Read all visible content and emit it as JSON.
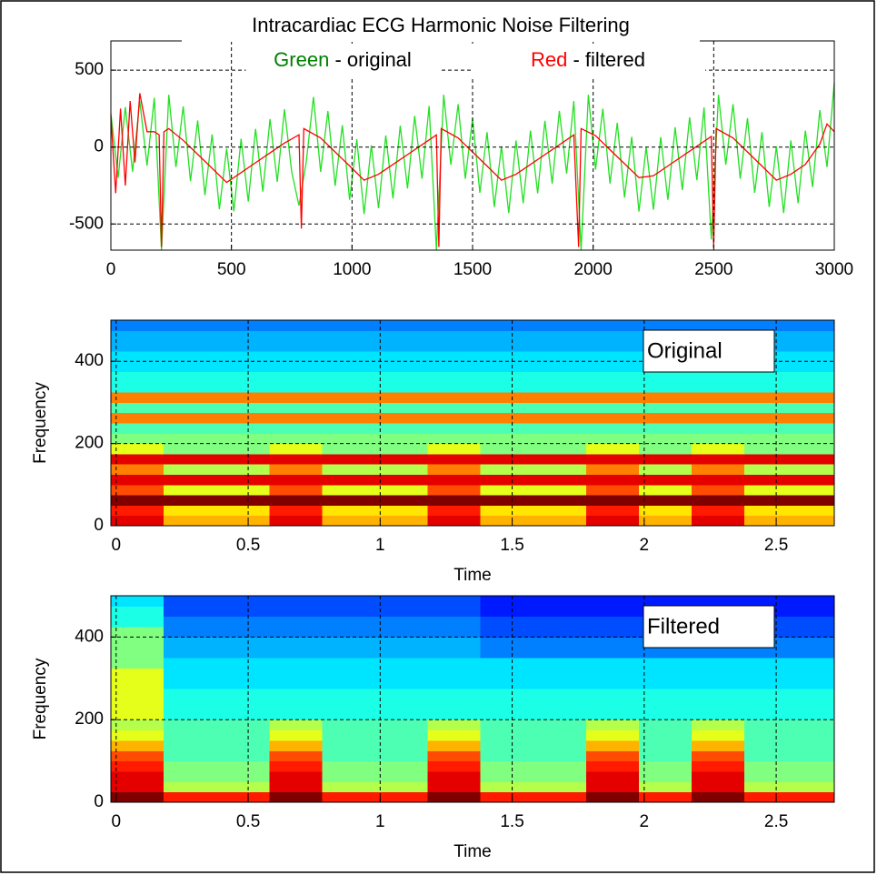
{
  "chart_data": [
    {
      "type": "line",
      "title": "Intracardiac ECG Harmonic Noise Filtering",
      "xlim": [
        0,
        3000
      ],
      "xticks": [
        0,
        500,
        1000,
        1500,
        2000,
        2500,
        3000
      ],
      "ylim": [
        -670,
        690
      ],
      "yticks": [
        -500,
        0,
        500
      ],
      "grid": true,
      "series": [
        {
          "name": "Green - original",
          "color": "#22e022",
          "x": [
            0,
            30,
            60,
            90,
            120,
            150,
            180,
            210,
            240,
            270,
            300,
            330,
            360,
            390,
            420,
            450,
            480,
            510,
            540,
            570,
            600,
            630,
            660,
            690,
            720,
            750,
            780,
            810,
            840,
            870,
            900,
            930,
            960,
            990,
            1020,
            1050,
            1080,
            1110,
            1140,
            1170,
            1200,
            1230,
            1260,
            1290,
            1320,
            1350,
            1380,
            1410,
            1440,
            1470,
            1500,
            1530,
            1560,
            1590,
            1620,
            1650,
            1680,
            1710,
            1740,
            1770,
            1800,
            1830,
            1860,
            1890,
            1920,
            1950,
            1980,
            2010,
            2040,
            2070,
            2100,
            2130,
            2160,
            2190,
            2220,
            2250,
            2280,
            2310,
            2340,
            2370,
            2400,
            2430,
            2460,
            2490,
            2520,
            2550,
            2580,
            2610,
            2640,
            2670,
            2700,
            2730,
            2760,
            2790,
            2820,
            2850,
            2880,
            2910,
            2940,
            2970,
            3000
          ],
          "values": [
            220,
            -200,
            260,
            -160,
            300,
            -120,
            320,
            -670,
            340,
            -130,
            264,
            -222,
            173,
            -313,
            82,
            -404,
            -10,
            -418,
            54,
            -354,
            118,
            -290,
            182,
            -226,
            246,
            -162,
            -380,
            -100,
            325,
            -161,
            234,
            -252,
            142,
            -343,
            51,
            -435,
            11,
            -397,
            75,
            -333,
            139,
            -269,
            203,
            -205,
            267,
            -670,
            340,
            -115,
            279,
            -206,
            188,
            -298,
            97,
            -389,
            5,
            -429,
            43,
            -365,
            107,
            -301,
            171,
            -237,
            235,
            -173,
            299,
            -670,
            340,
            -146,
            249,
            -237,
            157,
            -328,
            66,
            -419,
            1,
            -407,
            65,
            -343,
            129,
            -279,
            193,
            -215,
            257,
            -600,
            340,
            -115,
            279,
            -206,
            188,
            -298,
            97,
            -389,
            5,
            -429,
            43,
            -365,
            107,
            -260,
            240,
            -130,
            420
          ]
        },
        {
          "name": "Red - filtered",
          "color": "#ff0000",
          "x": [
            0,
            20,
            40,
            60,
            80,
            100,
            120,
            150,
            180,
            200,
            210,
            220,
            240,
            300,
            360,
            420,
            480,
            540,
            600,
            660,
            720,
            780,
            790,
            800,
            870,
            930,
            990,
            1050,
            1110,
            1170,
            1230,
            1290,
            1350,
            1360,
            1370,
            1440,
            1500,
            1560,
            1620,
            1680,
            1740,
            1800,
            1860,
            1920,
            1940,
            1950,
            2010,
            2070,
            2130,
            2190,
            2250,
            2310,
            2370,
            2430,
            2490,
            2500,
            2510,
            2580,
            2640,
            2700,
            2760,
            2820,
            2880,
            2940,
            2970,
            3000
          ],
          "values": [
            200,
            -300,
            250,
            -250,
            300,
            -100,
            350,
            100,
            100,
            80,
            -650,
            100,
            120,
            44,
            -47,
            -138,
            -230,
            -166,
            -102,
            -38,
            26,
            80,
            -530,
            120,
            59,
            -32,
            -123,
            -215,
            -177,
            -113,
            -49,
            15,
            79,
            -650,
            120,
            59,
            -32,
            -123,
            -215,
            -177,
            -113,
            -49,
            15,
            79,
            -650,
            120,
            74,
            -17,
            -108,
            -199,
            -187,
            -123,
            -59,
            5,
            69,
            -650,
            120,
            59,
            -32,
            -123,
            -215,
            -177,
            -113,
            20,
            150,
            100
          ]
        }
      ]
    },
    {
      "type": "heatmap",
      "annotation": "Original",
      "xlabel": "Time",
      "ylabel": "Frequency",
      "colormap": "jet",
      "clim": [
        0,
        10
      ],
      "xlim": [
        -0.02,
        2.72
      ],
      "xticks": [
        0,
        0.5,
        1,
        1.5,
        2,
        2.5
      ],
      "ylim": [
        0,
        500
      ],
      "yticks": [
        0,
        200,
        400
      ],
      "grid": true,
      "xbins": [
        -0.02,
        0.18,
        0.38,
        0.58,
        0.78,
        0.98,
        1.18,
        1.38,
        1.58,
        1.78,
        1.98,
        2.18,
        2.38,
        2.58,
        2.72
      ],
      "ybins": [
        0,
        25,
        50,
        75,
        100,
        125,
        150,
        175,
        200,
        225,
        250,
        275,
        300,
        325,
        350,
        375,
        400,
        425,
        450,
        475,
        500
      ],
      "values": [
        [
          9,
          7,
          7,
          9,
          7,
          7,
          9,
          7,
          7,
          9,
          7,
          9,
          7,
          7
        ],
        [
          8.5,
          6.5,
          6.5,
          8.5,
          6.5,
          6.5,
          8.5,
          6.5,
          6.5,
          8.5,
          6.5,
          8.5,
          6.5,
          6.5
        ],
        [
          10,
          10,
          10,
          10,
          10,
          10,
          10,
          10,
          10,
          10,
          10,
          10,
          10,
          10
        ],
        [
          8,
          6,
          6,
          8,
          6,
          6,
          8,
          6,
          6,
          8,
          6,
          8,
          6,
          6
        ],
        [
          9,
          9,
          9,
          9,
          9,
          9,
          9,
          9,
          9,
          9,
          9,
          9,
          9,
          9
        ],
        [
          7.5,
          5.5,
          5.5,
          7.5,
          5.5,
          5.5,
          7.5,
          5.5,
          5.5,
          7.5,
          5.5,
          7.5,
          5.5,
          5.5
        ],
        [
          9,
          9,
          9,
          9,
          9,
          9,
          9,
          9,
          9,
          9,
          9,
          9,
          9,
          9
        ],
        [
          6,
          5,
          5,
          6,
          5,
          5,
          6,
          5,
          5,
          6,
          5,
          6,
          5,
          5
        ],
        [
          5,
          5,
          5,
          5,
          5,
          5,
          5,
          5,
          5,
          5,
          5,
          5,
          5,
          5
        ],
        [
          4.5,
          4.5,
          4.5,
          4.5,
          4.5,
          4.5,
          4.5,
          4.5,
          4.5,
          4.5,
          4.5,
          4.5,
          4.5,
          4.5
        ],
        [
          7.5,
          7.5,
          7.5,
          7.5,
          7.5,
          7.5,
          7.5,
          7.5,
          7.5,
          7.5,
          7.5,
          7.5,
          7.5,
          7.5
        ],
        [
          4.5,
          4.5,
          4.5,
          4.5,
          4.5,
          4.5,
          4.5,
          4.5,
          4.5,
          4.5,
          4.5,
          4.5,
          4.5,
          4.5
        ],
        [
          7.5,
          7.5,
          7.5,
          7.5,
          7.5,
          7.5,
          7.5,
          7.5,
          7.5,
          7.5,
          7.5,
          7.5,
          7.5,
          7.5
        ],
        [
          4,
          4,
          4,
          4,
          4,
          4,
          4,
          4,
          4,
          4,
          4,
          4,
          4,
          4
        ],
        [
          4,
          4,
          4,
          4,
          4,
          4,
          4,
          4,
          4,
          4,
          4,
          4,
          4,
          4
        ],
        [
          3.5,
          3.5,
          3.5,
          3.5,
          3.5,
          3.5,
          3.5,
          3.5,
          3.5,
          3.5,
          3.5,
          3.5,
          3.5,
          3.5
        ],
        [
          3.5,
          3.5,
          3.5,
          3.5,
          3.5,
          3.5,
          3.5,
          3.5,
          3.5,
          3.5,
          3.5,
          3.5,
          3.5,
          3.5
        ],
        [
          3,
          3,
          3,
          3,
          3,
          3,
          3,
          3,
          3,
          3,
          3,
          3,
          3,
          3
        ],
        [
          3,
          3,
          3,
          3,
          3,
          3,
          3,
          3,
          3,
          3,
          3,
          3,
          3,
          3
        ],
        [
          2.5,
          2.5,
          2.5,
          2.5,
          2.5,
          2.5,
          2.5,
          2.5,
          2.5,
          2.5,
          2.5,
          2.5,
          2.5,
          2.5
        ]
      ]
    },
    {
      "type": "heatmap",
      "annotation": "Filtered",
      "xlabel": "Time",
      "ylabel": "Frequency",
      "colormap": "jet",
      "clim": [
        0,
        10
      ],
      "xlim": [
        -0.02,
        2.72
      ],
      "xticks": [
        0,
        0.5,
        1,
        1.5,
        2,
        2.5
      ],
      "ylim": [
        0,
        500
      ],
      "yticks": [
        0,
        200,
        400
      ],
      "grid": true,
      "xbins": [
        -0.02,
        0.18,
        0.38,
        0.58,
        0.78,
        0.98,
        1.18,
        1.38,
        1.58,
        1.78,
        1.98,
        2.18,
        2.38,
        2.58,
        2.72
      ],
      "ybins": [
        0,
        25,
        50,
        75,
        100,
        125,
        150,
        175,
        200,
        225,
        250,
        275,
        300,
        325,
        350,
        375,
        400,
        425,
        450,
        475,
        500
      ],
      "values": [
        [
          10,
          8.5,
          8.5,
          10,
          8.5,
          8.5,
          10,
          8.5,
          8.5,
          10,
          8.5,
          10,
          8.5,
          8.5
        ],
        [
          9,
          5.5,
          5.5,
          9,
          5.5,
          5.5,
          9,
          5.5,
          5.5,
          9,
          5.5,
          9,
          5.5,
          5.5
        ],
        [
          9,
          5,
          5,
          9,
          5,
          5,
          9,
          5,
          5,
          9,
          5,
          9,
          5,
          5
        ],
        [
          8.5,
          5,
          5,
          8.5,
          5,
          5,
          8.5,
          5,
          5,
          8.5,
          5,
          8.5,
          5,
          5
        ],
        [
          8,
          4.5,
          4.5,
          8,
          4.5,
          4.5,
          8,
          4.5,
          4.5,
          8,
          4.5,
          8,
          4.5,
          4.5
        ],
        [
          7,
          4.5,
          4.5,
          7,
          4.5,
          4.5,
          7,
          4.5,
          4.5,
          7,
          4.5,
          7,
          4.5,
          4.5
        ],
        [
          6,
          4.5,
          4.5,
          6,
          4.5,
          4.5,
          6,
          4.5,
          4.5,
          6,
          4.5,
          6,
          4.5,
          4.5
        ],
        [
          5.5,
          4.5,
          4.5,
          5.5,
          4.5,
          4.5,
          5.5,
          4.5,
          4.5,
          5.5,
          4.5,
          5.5,
          4.5,
          4.5
        ],
        [
          6,
          4,
          4,
          4,
          4,
          4,
          4,
          4,
          4,
          4,
          4,
          4,
          4,
          4
        ],
        [
          6,
          4,
          4,
          4,
          4,
          4,
          4,
          4,
          4,
          4,
          4,
          4,
          4,
          4
        ],
        [
          6,
          4,
          4,
          4,
          4,
          4,
          4,
          4,
          4,
          4,
          4,
          4,
          4,
          4
        ],
        [
          6,
          3.5,
          3.5,
          3.5,
          3.5,
          3.5,
          3.5,
          3.5,
          3.5,
          3.5,
          3.5,
          3.5,
          3.5,
          3.5
        ],
        [
          6,
          3.5,
          3.5,
          3.5,
          3.5,
          3.5,
          3.5,
          3.5,
          3.5,
          3.5,
          3.5,
          3.5,
          3.5,
          3.5
        ],
        [
          5,
          3.5,
          3.5,
          3.5,
          3.5,
          3.5,
          3.5,
          3.5,
          3.5,
          3.5,
          3.5,
          3.5,
          3.5,
          3.5
        ],
        [
          5,
          3,
          3,
          3,
          3,
          3,
          3,
          2.5,
          2.5,
          2.5,
          2.5,
          2.5,
          2.5,
          2.5
        ],
        [
          5,
          3,
          3,
          3,
          3,
          3,
          3,
          2.5,
          2.5,
          2.5,
          2.5,
          2.5,
          2.5,
          2.5
        ],
        [
          5,
          2.5,
          2.5,
          2.5,
          2.5,
          2.5,
          2.5,
          2,
          2,
          2,
          2,
          2,
          2,
          2
        ],
        [
          4,
          2.5,
          2.5,
          2.5,
          2.5,
          2.5,
          2.5,
          2,
          2,
          2,
          2,
          2,
          2,
          2
        ],
        [
          4,
          2,
          2,
          2,
          2,
          2,
          2,
          1.5,
          1.5,
          1.5,
          1.5,
          1.5,
          1.5,
          1.5
        ],
        [
          3.5,
          2,
          2,
          2,
          2,
          2,
          2,
          1.5,
          1.5,
          1.5,
          1.5,
          1.5,
          1.5,
          1.5
        ]
      ]
    }
  ]
}
